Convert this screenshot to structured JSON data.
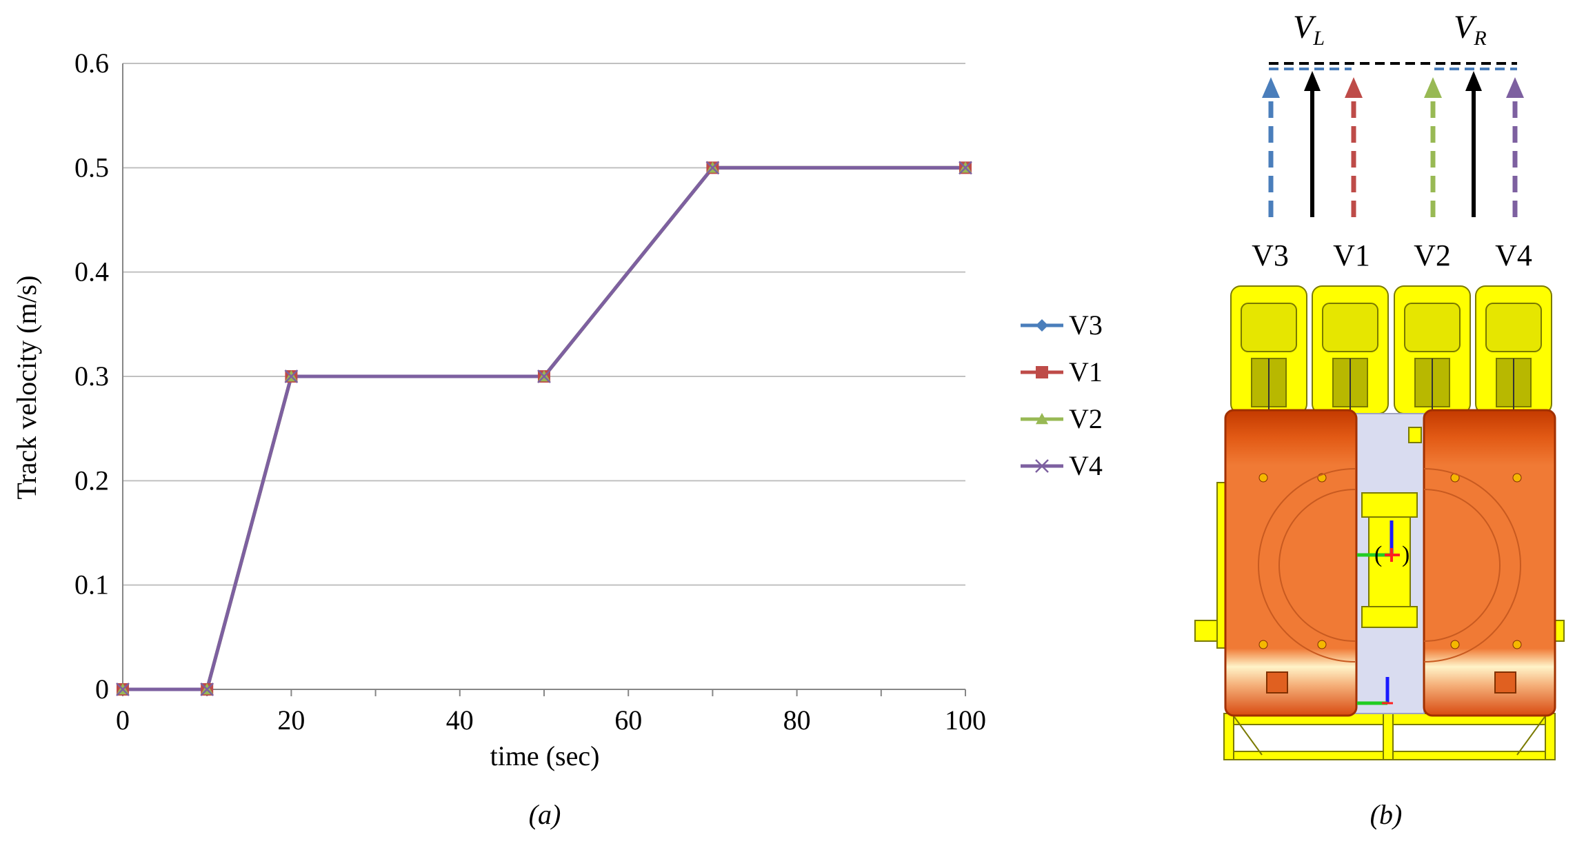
{
  "chart_data": {
    "type": "line",
    "x": [
      0,
      10,
      20,
      50,
      70,
      100
    ],
    "series": [
      {
        "name": "V3",
        "values": [
          0,
          0,
          0.3,
          0.3,
          0.5,
          0.5
        ],
        "color": "#4a7ebb",
        "marker": "diamond"
      },
      {
        "name": "V1",
        "values": [
          0,
          0,
          0.3,
          0.3,
          0.5,
          0.5
        ],
        "color": "#be4b48",
        "marker": "square"
      },
      {
        "name": "V2",
        "values": [
          0,
          0,
          0.3,
          0.3,
          0.5,
          0.5
        ],
        "color": "#98b954",
        "marker": "triangle"
      },
      {
        "name": "V4",
        "values": [
          0,
          0,
          0.3,
          0.3,
          0.5,
          0.5
        ],
        "color": "#7d60a0",
        "marker": "x"
      }
    ],
    "xlabel": "time (sec)",
    "ylabel": "Track velocity (m/s)",
    "xlim": [
      0,
      100
    ],
    "ylim": [
      0,
      0.6
    ],
    "xticks": [
      "0",
      "20",
      "40",
      "60",
      "80",
      "100"
    ],
    "yticks": [
      "0",
      "0.1",
      "0.2",
      "0.3",
      "0.4",
      "0.5",
      "0.6"
    ],
    "grid": "horizontal",
    "legend_position": "right"
  },
  "captions": {
    "a": "(a)",
    "b": "(b)"
  },
  "diagram": {
    "vl_main": "V",
    "vl_sub": "L",
    "vr_main": "V",
    "vr_sub": "R",
    "track_labels": [
      "V3",
      "V1",
      "V2",
      "V4"
    ],
    "arrow_colors": [
      "#4a7ebb",
      "#000000",
      "#be4b48",
      "#98b954",
      "#000000",
      "#7d60a0"
    ]
  },
  "colors": {
    "grid": "#c0c0c0",
    "body_orange": "#f07a35",
    "body_dark": "#c43a00",
    "frame_yellow": "#ffff00",
    "center_panel": "#d9dcf0"
  }
}
